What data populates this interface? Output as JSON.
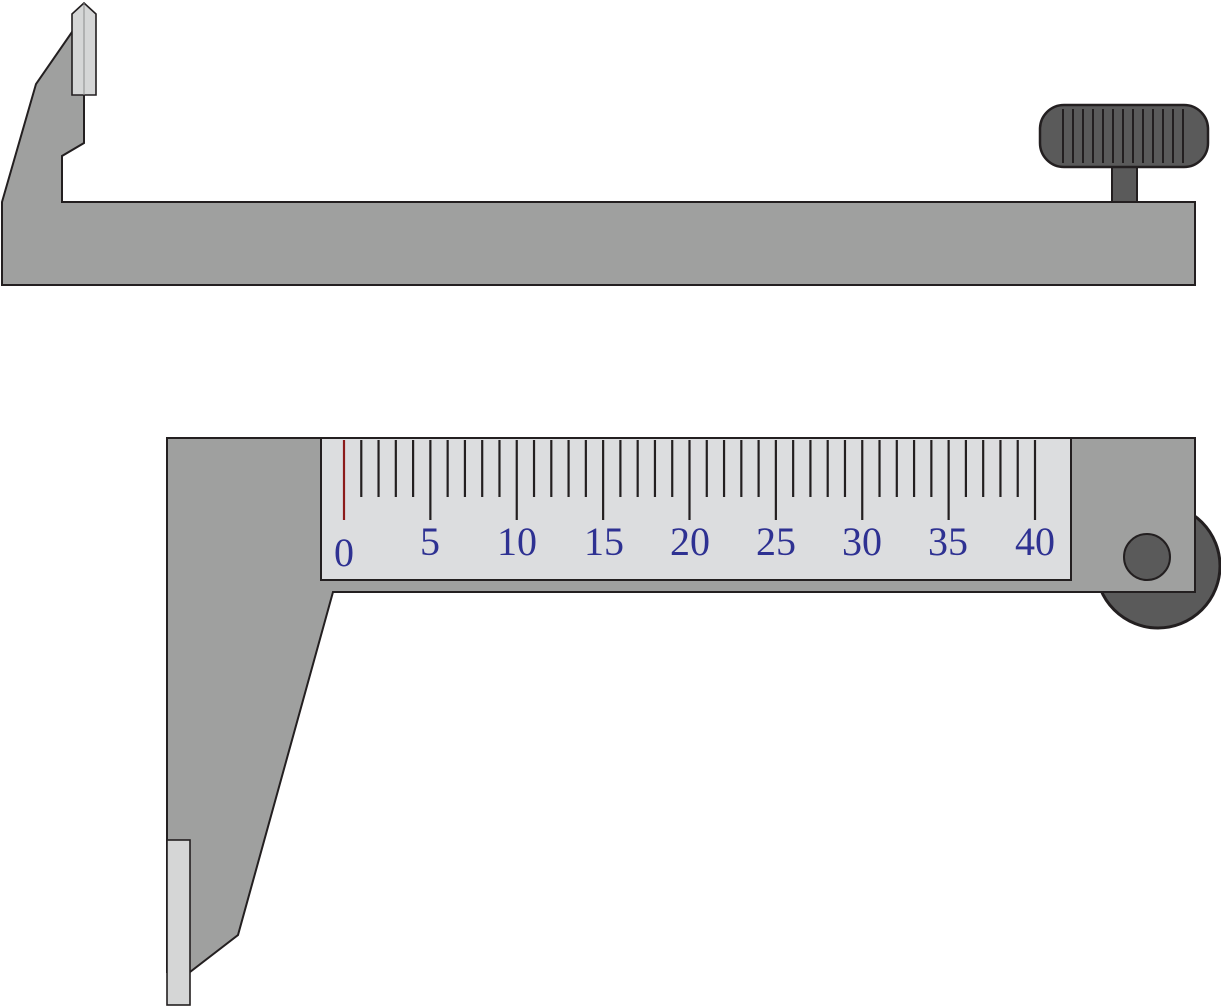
{
  "scale": {
    "start": 0,
    "end": 40,
    "step": 1,
    "label_every": 5,
    "labels": [
      "0",
      "5",
      "10",
      "15",
      "20",
      "25",
      "30",
      "35",
      "40"
    ]
  },
  "colors": {
    "body": "#9fa09f",
    "knob": "#5a5a5a",
    "scale_plate": "#dcdddf",
    "jaw_tip": "#d5d6d6",
    "stroke": "#231f20",
    "numeral": "#2e3192",
    "zero_mark": "#8b1a1a"
  },
  "icons": {
    "thumb_screw": "thumb-screw-icon",
    "thumb_wheel": "thumb-wheel-icon"
  }
}
